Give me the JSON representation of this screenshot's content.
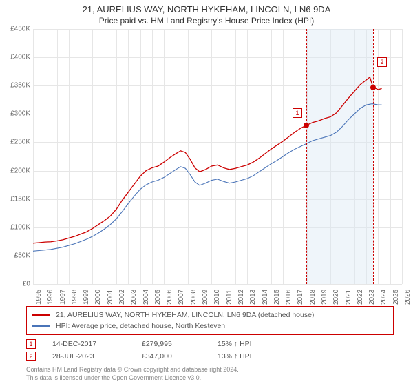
{
  "title": "21, AURELIUS WAY, NORTH HYKEHAM, LINCOLN, LN6 9DA",
  "subtitle": "Price paid vs. HM Land Registry's House Price Index (HPI)",
  "chart": {
    "type": "line",
    "background_color": "#ffffff",
    "grid_color": "#e6e6e6",
    "axis_color": "#666666",
    "x": {
      "min": 1995,
      "max": 2026,
      "tick_step": 1,
      "labels": [
        "1995",
        "1996",
        "1997",
        "1998",
        "1999",
        "2000",
        "2001",
        "2002",
        "2003",
        "2004",
        "2005",
        "2006",
        "2007",
        "2008",
        "2009",
        "2010",
        "2011",
        "2012",
        "2013",
        "2014",
        "2015",
        "2016",
        "2017",
        "2018",
        "2019",
        "2020",
        "2021",
        "2022",
        "2023",
        "2024",
        "2025",
        "2026"
      ]
    },
    "y": {
      "min": 0,
      "max": 450000,
      "tick_step": 50000,
      "labels": [
        "£0",
        "£50K",
        "£100K",
        "£150K",
        "£200K",
        "£250K",
        "£300K",
        "£350K",
        "£400K",
        "£450K"
      ]
    },
    "future_band": {
      "start_year": 2017.96,
      "end_year": 2023.57,
      "color": "#dce8f5",
      "opacity": 0.45
    },
    "series": [
      {
        "name": "price_paid",
        "label": "21, AURELIUS WAY, NORTH HYKEHAM, LINCOLN, LN6 9DA (detached house)",
        "color": "#cc0000",
        "line_width": 1.3,
        "data": [
          [
            1995.0,
            72000
          ],
          [
            1995.5,
            73000
          ],
          [
            1996.0,
            74000
          ],
          [
            1996.5,
            74500
          ],
          [
            1997.0,
            76000
          ],
          [
            1997.5,
            78000
          ],
          [
            1998.0,
            81000
          ],
          [
            1998.5,
            84000
          ],
          [
            1999.0,
            88000
          ],
          [
            1999.5,
            92000
          ],
          [
            2000.0,
            98000
          ],
          [
            2000.5,
            105000
          ],
          [
            2001.0,
            112000
          ],
          [
            2001.5,
            120000
          ],
          [
            2002.0,
            132000
          ],
          [
            2002.5,
            148000
          ],
          [
            2003.0,
            162000
          ],
          [
            2003.5,
            176000
          ],
          [
            2004.0,
            190000
          ],
          [
            2004.5,
            200000
          ],
          [
            2005.0,
            205000
          ],
          [
            2005.5,
            208000
          ],
          [
            2006.0,
            215000
          ],
          [
            2006.5,
            223000
          ],
          [
            2007.0,
            230000
          ],
          [
            2007.4,
            235000
          ],
          [
            2007.8,
            232000
          ],
          [
            2008.2,
            220000
          ],
          [
            2008.6,
            205000
          ],
          [
            2009.0,
            198000
          ],
          [
            2009.5,
            202000
          ],
          [
            2010.0,
            208000
          ],
          [
            2010.5,
            210000
          ],
          [
            2011.0,
            205000
          ],
          [
            2011.5,
            202000
          ],
          [
            2012.0,
            204000
          ],
          [
            2012.5,
            207000
          ],
          [
            2013.0,
            210000
          ],
          [
            2013.5,
            215000
          ],
          [
            2014.0,
            222000
          ],
          [
            2014.5,
            230000
          ],
          [
            2015.0,
            238000
          ],
          [
            2015.5,
            245000
          ],
          [
            2016.0,
            252000
          ],
          [
            2016.5,
            260000
          ],
          [
            2017.0,
            268000
          ],
          [
            2017.5,
            275000
          ],
          [
            2017.96,
            279995
          ],
          [
            2018.5,
            285000
          ],
          [
            2019.0,
            288000
          ],
          [
            2019.5,
            292000
          ],
          [
            2020.0,
            295000
          ],
          [
            2020.5,
            302000
          ],
          [
            2021.0,
            315000
          ],
          [
            2021.5,
            328000
          ],
          [
            2022.0,
            340000
          ],
          [
            2022.5,
            352000
          ],
          [
            2023.0,
            360000
          ],
          [
            2023.3,
            365000
          ],
          [
            2023.57,
            347000
          ],
          [
            2023.8,
            345000
          ],
          [
            2024.0,
            343000
          ],
          [
            2024.3,
            345000
          ]
        ]
      },
      {
        "name": "hpi",
        "label": "HPI: Average price, detached house, North Kesteven",
        "color": "#4a74b8",
        "line_width": 1.1,
        "data": [
          [
            1995.0,
            58000
          ],
          [
            1995.5,
            59000
          ],
          [
            1996.0,
            60000
          ],
          [
            1996.5,
            61000
          ],
          [
            1997.0,
            63000
          ],
          [
            1997.5,
            65000
          ],
          [
            1998.0,
            68000
          ],
          [
            1998.5,
            71000
          ],
          [
            1999.0,
            75000
          ],
          [
            1999.5,
            79000
          ],
          [
            2000.0,
            84000
          ],
          [
            2000.5,
            90000
          ],
          [
            2001.0,
            97000
          ],
          [
            2001.5,
            105000
          ],
          [
            2002.0,
            115000
          ],
          [
            2002.5,
            128000
          ],
          [
            2003.0,
            142000
          ],
          [
            2003.5,
            155000
          ],
          [
            2004.0,
            167000
          ],
          [
            2004.5,
            175000
          ],
          [
            2005.0,
            180000
          ],
          [
            2005.5,
            183000
          ],
          [
            2006.0,
            188000
          ],
          [
            2006.5,
            195000
          ],
          [
            2007.0,
            202000
          ],
          [
            2007.4,
            207000
          ],
          [
            2007.8,
            204000
          ],
          [
            2008.2,
            193000
          ],
          [
            2008.6,
            180000
          ],
          [
            2009.0,
            174000
          ],
          [
            2009.5,
            178000
          ],
          [
            2010.0,
            183000
          ],
          [
            2010.5,
            185000
          ],
          [
            2011.0,
            181000
          ],
          [
            2011.5,
            178000
          ],
          [
            2012.0,
            180000
          ],
          [
            2012.5,
            183000
          ],
          [
            2013.0,
            186000
          ],
          [
            2013.5,
            191000
          ],
          [
            2014.0,
            198000
          ],
          [
            2014.5,
            205000
          ],
          [
            2015.0,
            212000
          ],
          [
            2015.5,
            218000
          ],
          [
            2016.0,
            225000
          ],
          [
            2016.5,
            232000
          ],
          [
            2017.0,
            238000
          ],
          [
            2017.5,
            243000
          ],
          [
            2018.0,
            248000
          ],
          [
            2018.5,
            253000
          ],
          [
            2019.0,
            256000
          ],
          [
            2019.5,
            259000
          ],
          [
            2020.0,
            262000
          ],
          [
            2020.5,
            268000
          ],
          [
            2021.0,
            278000
          ],
          [
            2021.5,
            290000
          ],
          [
            2022.0,
            300000
          ],
          [
            2022.5,
            310000
          ],
          [
            2023.0,
            316000
          ],
          [
            2023.5,
            318000
          ],
          [
            2024.0,
            316000
          ],
          [
            2024.3,
            316000
          ]
        ]
      }
    ],
    "sales_markers": [
      {
        "idx": "1",
        "year": 2017.96,
        "price": 279995,
        "color": "#cc0000"
      },
      {
        "idx": "2",
        "year": 2023.57,
        "price": 347000,
        "color": "#cc0000"
      }
    ]
  },
  "legend": {
    "border_color": "#cc0000"
  },
  "sales": [
    {
      "idx": "1",
      "date": "14-DEC-2017",
      "price": "£279,995",
      "pct": "15% ↑ HPI"
    },
    {
      "idx": "2",
      "date": "28-JUL-2023",
      "price": "£347,000",
      "pct": "13% ↑ HPI"
    }
  ],
  "attribution": {
    "line1": "Contains HM Land Registry data © Crown copyright and database right 2024.",
    "line2": "This data is licensed under the Open Government Licence v3.0."
  }
}
